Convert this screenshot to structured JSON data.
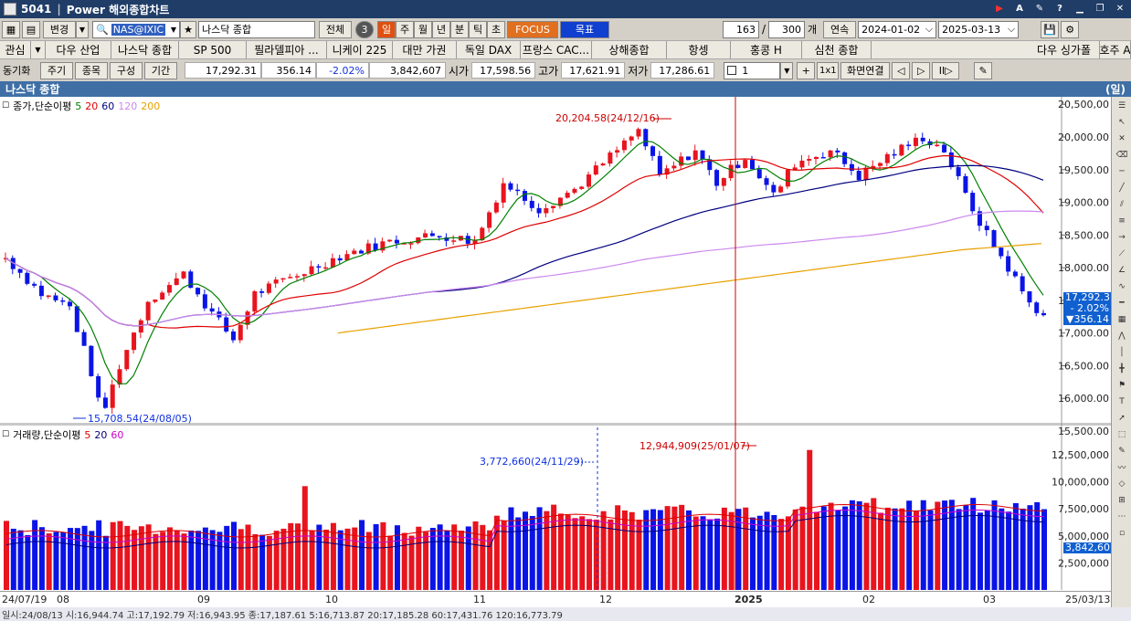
{
  "window": {
    "id": "5041",
    "title": "Power 해외종합차트"
  },
  "toolbar": {
    "change_label": "변경",
    "symbol": "NAS@IXIC",
    "symbol_name": "나스닥 종합",
    "all_label": "전체",
    "circle_num": "3",
    "periods": [
      {
        "label": "일",
        "active": true
      },
      {
        "label": "주",
        "active": false
      },
      {
        "label": "월",
        "active": false
      },
      {
        "label": "년",
        "active": false
      },
      {
        "label": "분",
        "active": false
      },
      {
        "label": "틱",
        "active": false
      },
      {
        "label": "초",
        "active": false
      }
    ],
    "focus_label": "FOCUS",
    "target_label": "목표",
    "count": "163",
    "slash": "/",
    "total": "300",
    "count_unit": "개",
    "continuous_label": "연속",
    "date_from": "2024-01-02",
    "date_to": "2025-03-13"
  },
  "index_tabs": {
    "interest_label": "관심",
    "items": [
      "다우 산업",
      "나스닥 종합",
      "SP 500",
      "필라델피아 ...",
      "니케이 225",
      "대만 가권",
      "독일 DAX",
      "프랑스 CAC...",
      "상해종합",
      "항셍",
      "홍콩 H",
      "심천 종합"
    ],
    "right_items": [
      "다우 싱가폴",
      "호주 A"
    ]
  },
  "quote_bar": {
    "sync_label": "동기화",
    "period_label": "주기",
    "item_label": "종목",
    "config_label": "구성",
    "term_label": "기간",
    "price": "17,292.31",
    "change": "356.14",
    "change_pct": "-2.02%",
    "volume": "3,842,607",
    "open_label": "시가",
    "open": "17,598.56",
    "high_label": "고가",
    "high": "17,621.91",
    "low_label": "저가",
    "low": "17,286.61",
    "ratio_value": "1",
    "x1_label": "1x1",
    "link_label": "화면연결"
  },
  "chart_title": "나스닥 종합",
  "chart_unit": "(일)",
  "price_legend": {
    "title": "종가,단순이평",
    "ma": [
      {
        "label": "5",
        "color": "#008000"
      },
      {
        "label": "20",
        "color": "#e00000"
      },
      {
        "label": "60",
        "color": "#000080"
      },
      {
        "label": "120",
        "color": "#cc88ee"
      },
      {
        "label": "200",
        "color": "#e8a000"
      }
    ]
  },
  "volume_legend": {
    "title": "거래량,단순이평",
    "ma": [
      {
        "label": "5",
        "color": "#e00000"
      },
      {
        "label": "20",
        "color": "#000080"
      },
      {
        "label": "60",
        "color": "#cc00cc"
      }
    ]
  },
  "annotations": {
    "high": "20,204.58(24/12/16)",
    "low": "15,708.54(24/08/05)",
    "vol_max": "12,944,909(25/01/07)",
    "vol_mark": "3,772,660(24/11/29)"
  },
  "price_tag": {
    "price": "17,292.31",
    "pct": "- 2.02%",
    "chg": "▼356.14"
  },
  "vol_tag": "3,842,607",
  "y_labels": [
    "20,500,00",
    "20,000.00",
    "19,500.00",
    "19,000.00",
    "18,500.00",
    "18,000.00",
    "17,500.00",
    "17,000.00",
    "16,500.00",
    "16,000.00",
    "15,500.00"
  ],
  "vol_y_labels": [
    "12,500,000",
    "10,000,000",
    "7,500,000",
    "5,000,000",
    "2,500,000"
  ],
  "x_labels": [
    "24/07/19",
    "08",
    "09",
    "10",
    "11",
    "12",
    "2025",
    "02",
    "03",
    "25/03/13"
  ],
  "status": "일시:24/08/13 시:16,944.74 고:17,192.79 저:16,943.95 종:17,187.61 5:16,713.87 20:17,185.28 60:17,431.76 120:16,773.79",
  "colors": {
    "up": "#e8141e",
    "down": "#0a14e6",
    "ma5": "#008000",
    "ma20": "#e00000",
    "ma60": "#000080",
    "ma120": "#cc88ee",
    "ma200": "#e8a000",
    "vline": "#cc0000"
  }
}
